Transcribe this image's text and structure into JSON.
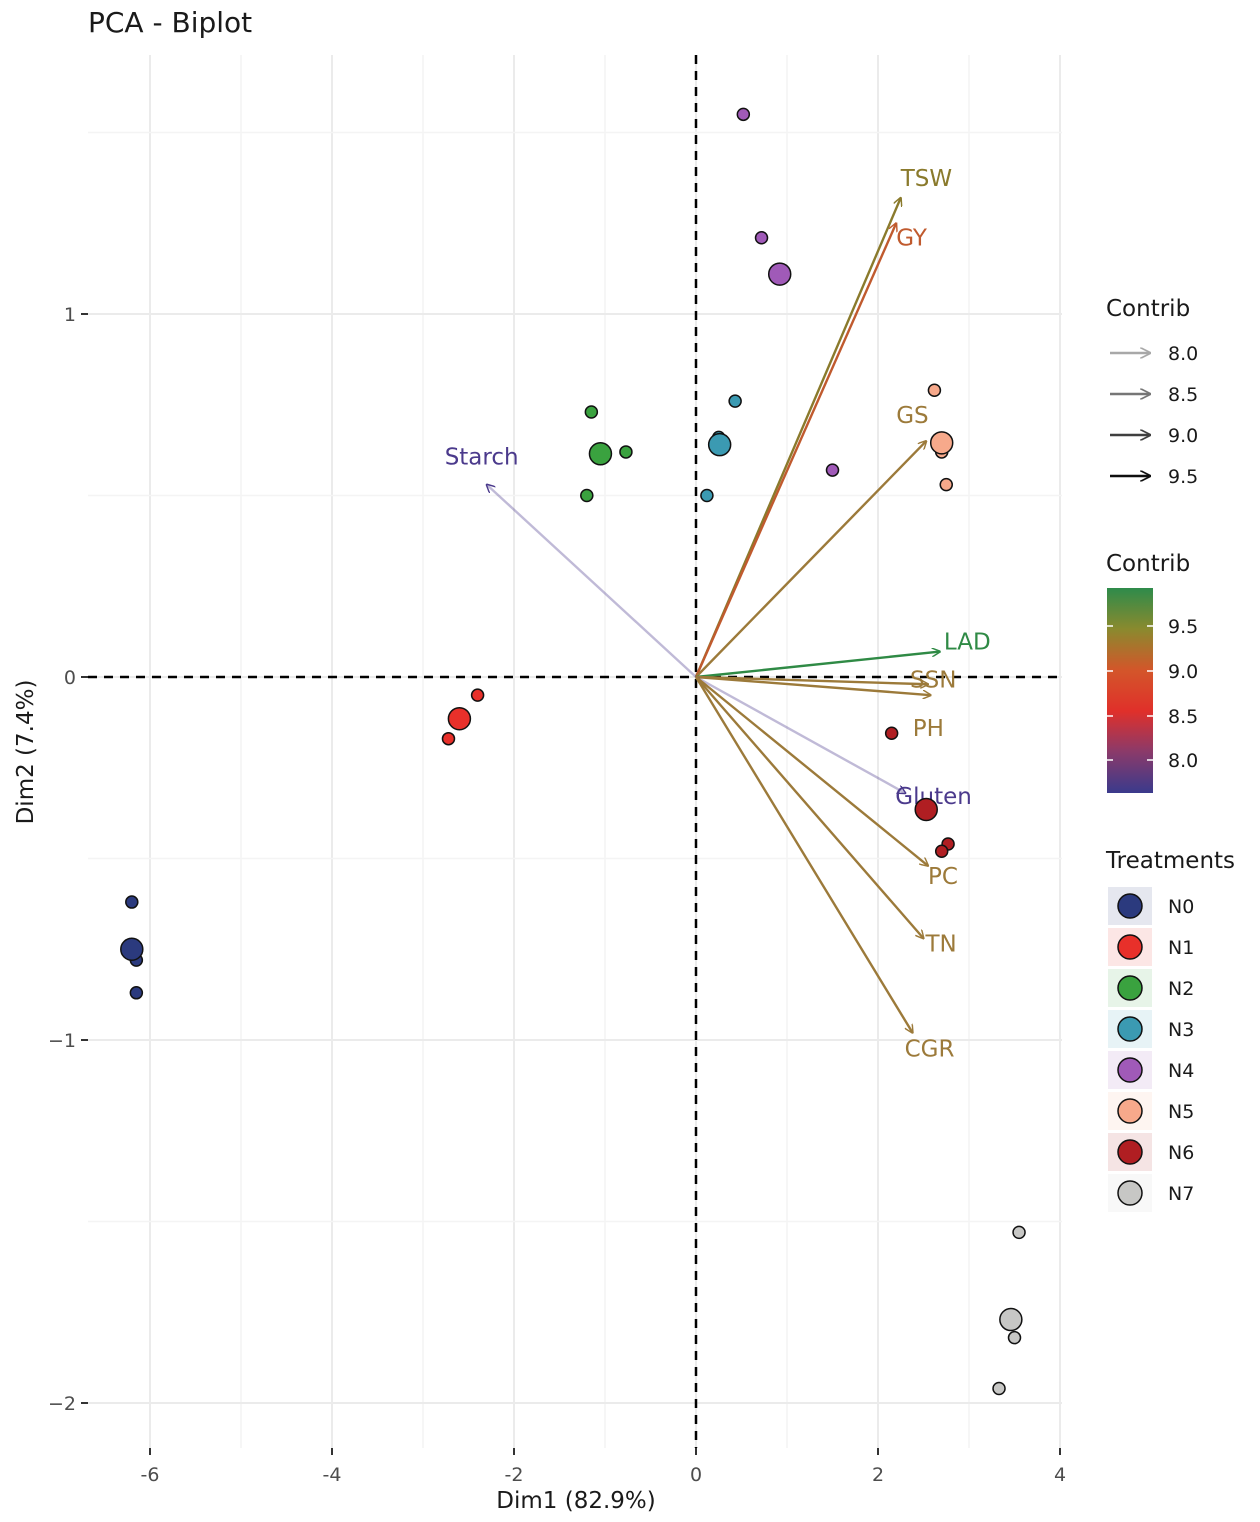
{
  "chart_data": {
    "type": "scatter",
    "title": "PCA - Biplot",
    "xlabel": "Dim1 (82.9%)",
    "ylabel": "Dim2 (7.4%)",
    "xlim": [
      -6.6,
      4.1
    ],
    "ylim": [
      -2.1,
      1.8
    ],
    "x_ticks": [
      -6,
      -4,
      -2,
      0,
      2,
      4
    ],
    "y_ticks": [
      -2,
      -1,
      0,
      1
    ],
    "x_tick_labels": [
      "-6",
      "-4",
      "-2",
      "0",
      "2",
      "4"
    ],
    "y_tick_labels": [
      "−2",
      "−1",
      "0",
      "1"
    ],
    "grid": true,
    "reference_lines": {
      "x": 0,
      "y": 0,
      "style": "dashed"
    },
    "series": [
      {
        "name": "N0",
        "color": "#2b3a7e",
        "points": [
          {
            "x": -6.2,
            "y": -0.62
          },
          {
            "x": -6.15,
            "y": -0.78
          },
          {
            "x": -6.15,
            "y": -0.87
          },
          {
            "x": -6.2,
            "y": -0.75,
            "centroid": true
          }
        ]
      },
      {
        "name": "N1",
        "color": "#e8302a",
        "points": [
          {
            "x": -2.4,
            "y": -0.05
          },
          {
            "x": -2.72,
            "y": -0.17
          },
          {
            "x": -2.6,
            "y": -0.115,
            "centroid": true
          }
        ]
      },
      {
        "name": "N2",
        "color": "#3aa23f",
        "points": [
          {
            "x": -1.15,
            "y": 0.73
          },
          {
            "x": -0.77,
            "y": 0.62
          },
          {
            "x": -1.2,
            "y": 0.5
          },
          {
            "x": -1.05,
            "y": 0.615,
            "centroid": true
          }
        ]
      },
      {
        "name": "N3",
        "color": "#3b9ab2",
        "points": [
          {
            "x": 0.43,
            "y": 0.76
          },
          {
            "x": 0.12,
            "y": 0.5
          },
          {
            "x": 0.25,
            "y": 0.66
          },
          {
            "x": 0.26,
            "y": 0.64,
            "centroid": true
          }
        ]
      },
      {
        "name": "N4",
        "color": "#a05ab8",
        "points": [
          {
            "x": 0.52,
            "y": 1.55
          },
          {
            "x": 0.72,
            "y": 1.21
          },
          {
            "x": 1.5,
            "y": 0.57
          },
          {
            "x": 0.92,
            "y": 1.11,
            "centroid": true
          }
        ]
      },
      {
        "name": "N5",
        "color": "#f7a98b",
        "points": [
          {
            "x": 2.62,
            "y": 0.79
          },
          {
            "x": 2.75,
            "y": 0.53
          },
          {
            "x": 2.7,
            "y": 0.62
          },
          {
            "x": 2.7,
            "y": 0.645,
            "centroid": true
          }
        ]
      },
      {
        "name": "N6",
        "color": "#b01e22",
        "points": [
          {
            "x": 2.15,
            "y": -0.155
          },
          {
            "x": 2.77,
            "y": -0.46
          },
          {
            "x": 2.7,
            "y": -0.48
          },
          {
            "x": 2.53,
            "y": -0.365,
            "centroid": true
          }
        ]
      },
      {
        "name": "N7",
        "color": "#c7c7c5",
        "points": [
          {
            "x": 3.55,
            "y": -1.53
          },
          {
            "x": 3.5,
            "y": -1.82
          },
          {
            "x": 3.33,
            "y": -1.96
          },
          {
            "x": 3.46,
            "y": -1.77,
            "centroid": true
          }
        ]
      }
    ],
    "variables": [
      {
        "name": "TSW",
        "x": 2.25,
        "y": 1.32,
        "contrib": 9.3,
        "color": "#8a7a2c"
      },
      {
        "name": "GY",
        "x": 2.2,
        "y": 1.25,
        "contrib": 8.9,
        "color": "#c05a2e"
      },
      {
        "name": "GS",
        "x": 2.53,
        "y": 0.65,
        "contrib": 9.2,
        "color": "#9c7a3a"
      },
      {
        "name": "Starch",
        "x": -2.3,
        "y": 0.53,
        "contrib": 7.9,
        "color": "#4b3a8c"
      },
      {
        "name": "LAD",
        "x": 2.68,
        "y": 0.07,
        "contrib": 9.7,
        "color": "#2f8a45"
      },
      {
        "name": "SSN",
        "x": 2.55,
        "y": -0.02,
        "contrib": 9.2,
        "color": "#9c7a3a"
      },
      {
        "name": "PH",
        "x": 2.58,
        "y": -0.05,
        "contrib": 9.2,
        "color": "#9c7a3a"
      },
      {
        "name": "Gluten",
        "x": 2.3,
        "y": -0.32,
        "contrib": 7.9,
        "color": "#4b3a8c"
      },
      {
        "name": "PC",
        "x": 2.55,
        "y": -0.52,
        "contrib": 9.2,
        "color": "#9c7a3a"
      },
      {
        "name": "TN",
        "x": 2.5,
        "y": -0.72,
        "contrib": 9.2,
        "color": "#9c7a3a"
      },
      {
        "name": "CGR",
        "x": 2.38,
        "y": -0.98,
        "contrib": 9.1,
        "color": "#9c7a3a"
      }
    ],
    "legends": {
      "contrib_arrow": {
        "title": "Contrib",
        "entries": [
          {
            "label": "8.0",
            "color": "#a8a8a8"
          },
          {
            "label": "8.5",
            "color": "#767676"
          },
          {
            "label": "9.0",
            "color": "#3f3f3f"
          },
          {
            "label": "9.5",
            "color": "#0f0f0f"
          }
        ]
      },
      "contrib_color": {
        "title": "Contrib",
        "labels": [
          "9.5",
          "9.0",
          "8.5",
          "8.0"
        ],
        "gradient_top_to_bottom": [
          "#2e8b4b",
          "#8a8a2e",
          "#d3562a",
          "#e0302a",
          "#8a3a6a",
          "#3a3a8c"
        ]
      },
      "treatments": {
        "title": "Treatments"
      }
    }
  }
}
